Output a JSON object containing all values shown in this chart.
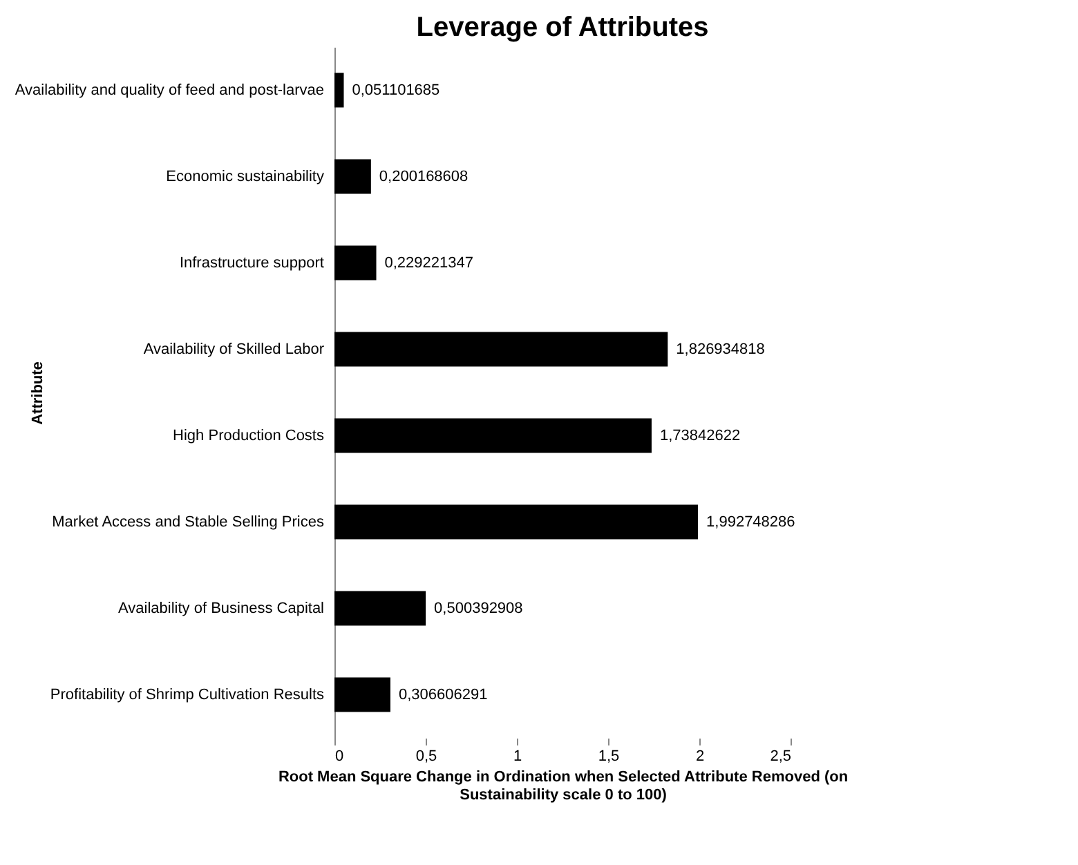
{
  "chart_data": {
    "type": "bar",
    "orientation": "horizontal",
    "title": "Leverage of Attributes",
    "xlabel": "Root Mean Square Change in Ordination when Selected Attribute Removed (on Sustainability scale 0 to 100)",
    "ylabel": "Attribute",
    "categories": [
      "Availability and quality of feed and post-larvae",
      "Economic sustainability",
      "Infrastructure support",
      "Availability of Skilled Labor",
      "High Production Costs",
      "Market Access and Stable Selling Prices",
      "Availability of Business Capital",
      "Profitability of Shrimp Cultivation Results"
    ],
    "values": [
      0.051101685,
      0.200168608,
      0.229221347,
      1.826934818,
      1.73842622,
      1.992748286,
      0.500392908,
      0.306606291
    ],
    "value_labels": [
      "0,051101685",
      "0,200168608",
      "0,229221347",
      "1,826934818",
      "1,73842622",
      "1,992748286",
      "0,500392908",
      "0,306606291"
    ],
    "color": "#000000",
    "xlim": [
      0,
      2.5
    ],
    "xticks": [
      0,
      {
        "value": 0.5,
        "label": "0,5"
      },
      1,
      {
        "value": 1.5,
        "label": "1,5"
      },
      2,
      {
        "value": 2.5,
        "label": "2,5"
      }
    ]
  }
}
